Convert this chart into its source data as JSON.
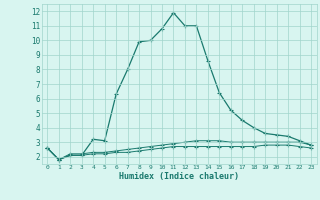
{
  "xlabel": "Humidex (Indice chaleur)",
  "x_values": [
    0,
    1,
    2,
    3,
    4,
    5,
    6,
    7,
    8,
    9,
    10,
    11,
    12,
    13,
    14,
    15,
    16,
    17,
    18,
    19,
    20,
    21,
    22,
    23
  ],
  "line1_y": [
    2.6,
    1.8,
    2.1,
    2.1,
    3.2,
    3.1,
    6.3,
    8.0,
    9.9,
    10.0,
    10.8,
    11.9,
    11.0,
    11.0,
    8.6,
    6.4,
    5.2,
    4.5,
    4.0,
    3.6,
    3.5,
    3.4,
    3.1,
    2.8
  ],
  "line2_y": [
    2.6,
    1.8,
    2.2,
    2.2,
    2.3,
    2.3,
    2.4,
    2.5,
    2.6,
    2.7,
    2.8,
    2.9,
    3.0,
    3.1,
    3.1,
    3.1,
    3.0,
    3.0,
    3.0,
    3.0,
    3.0,
    3.0,
    3.0,
    2.8
  ],
  "line3_y": [
    2.6,
    1.8,
    2.1,
    2.1,
    2.2,
    2.2,
    2.3,
    2.3,
    2.4,
    2.5,
    2.6,
    2.7,
    2.7,
    2.7,
    2.7,
    2.7,
    2.7,
    2.7,
    2.7,
    2.8,
    2.8,
    2.8,
    2.7,
    2.6
  ],
  "line_color": "#1a7a6e",
  "bg_color": "#d8f5f0",
  "grid_color": "#a0d5cc",
  "ylim": [
    1.5,
    12.5
  ],
  "xlim": [
    -0.5,
    23.5
  ],
  "yticks": [
    2,
    3,
    4,
    5,
    6,
    7,
    8,
    9,
    10,
    11,
    12
  ],
  "xticks": [
    0,
    1,
    2,
    3,
    4,
    5,
    6,
    7,
    8,
    9,
    10,
    11,
    12,
    13,
    14,
    15,
    16,
    17,
    18,
    19,
    20,
    21,
    22,
    23
  ]
}
